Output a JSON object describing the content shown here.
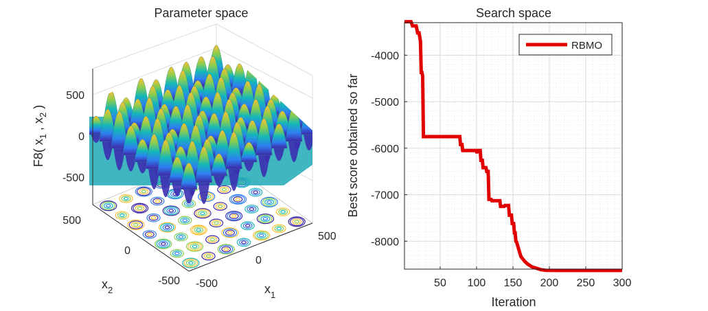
{
  "colors": {
    "line": "#e00000",
    "axis": "#262626",
    "grid": "#d4d4d4"
  },
  "chart_data": [
    {
      "type": "surface",
      "title": "Parameter space",
      "zlabel": "F8( x",
      "zlabel_sub1": "1",
      "zlabel_mid": " , x",
      "zlabel_sub2": "2",
      "zlabel_end": " )",
      "xlabel": "x",
      "xlabel_sub": "1",
      "ylabel": "x",
      "ylabel_sub": "2",
      "z_ticks": [
        "500",
        "0",
        "-500"
      ],
      "x_ticks": [
        "500",
        "0",
        "-500"
      ],
      "y_ticks": [
        "500",
        "0",
        "-500"
      ],
      "xlim": [
        -500,
        500
      ],
      "ylim": [
        -500,
        500
      ],
      "zlim": [
        -838,
        838
      ]
    },
    {
      "type": "line",
      "title": "Search space",
      "xlabel": "Iteration",
      "ylabel": "Best score obtained so far",
      "xlim": [
        1,
        300
      ],
      "ylim": [
        -8600,
        -3300
      ],
      "x_ticks": [
        50,
        100,
        150,
        200,
        250,
        300
      ],
      "y_ticks": [
        -4000,
        -5000,
        -6000,
        -7000,
        -8000
      ],
      "y_tick_labels": [
        "-4000",
        "-5000",
        "-6000",
        "-7000",
        "-8000"
      ],
      "x_tick_labels": [
        "50",
        "100",
        "150",
        "200",
        "250",
        "300"
      ],
      "legend": "RBMO",
      "legend_position": "top-right",
      "grid": true,
      "series": [
        {
          "name": "RBMO",
          "x": [
            1,
            10,
            12,
            17,
            19,
            21,
            23,
            24,
            25,
            26,
            27,
            77,
            78,
            80,
            81,
            99,
            100,
            101,
            102,
            105,
            106,
            108,
            109,
            113,
            114,
            116,
            117,
            120,
            121,
            132,
            133,
            138,
            139,
            144,
            145,
            148,
            149,
            151,
            152,
            153,
            154,
            155,
            158,
            161,
            166,
            170,
            176,
            182,
            188,
            195,
            205,
            300
          ],
          "y": [
            -3280,
            -3280,
            -3370,
            -3370,
            -3520,
            -3520,
            -3700,
            -4370,
            -4370,
            -4450,
            -5750,
            -5750,
            -5920,
            -5920,
            -6050,
            -6050,
            -6080,
            -6080,
            -6050,
            -6050,
            -6260,
            -6260,
            -6420,
            -6420,
            -6500,
            -6500,
            -7100,
            -7100,
            -7130,
            -7130,
            -7250,
            -7250,
            -7230,
            -7230,
            -7440,
            -7440,
            -7620,
            -7620,
            -7820,
            -7820,
            -8000,
            -8020,
            -8180,
            -8330,
            -8430,
            -8490,
            -8550,
            -8580,
            -8610,
            -8625,
            -8628,
            -8628
          ]
        }
      ]
    }
  ]
}
